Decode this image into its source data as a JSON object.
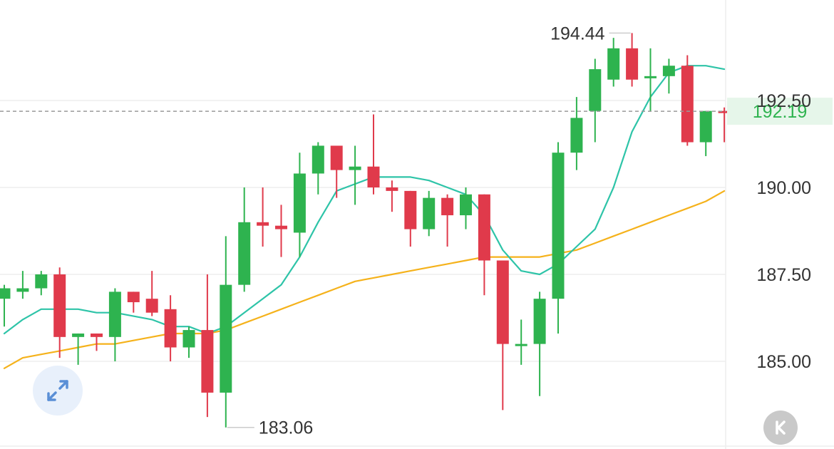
{
  "chart_data": {
    "type": "candlestick",
    "y_ticks": [
      "192.50",
      "190.00",
      "187.50",
      "185.00"
    ],
    "ylim": [
      183.0,
      195.0
    ],
    "high_marker": "194.44",
    "low_marker": "183.06",
    "current_price_label": "192.19",
    "current_price": 192.19,
    "colors": {
      "up": "#2eb34f",
      "down": "#e03a4b",
      "ma_short": "#2ec4a8",
      "ma_long": "#f5b21b",
      "grid": "#eeeeee",
      "price_line": "#9a9a9a",
      "price_label_bg": "#e6f6ea",
      "price_label_text": "#2eb34f",
      "axis_text": "#333333"
    },
    "candles": [
      {
        "o": 186.8,
        "c": 187.1,
        "h": 187.2,
        "l": 186.0
      },
      {
        "o": 187.0,
        "c": 187.1,
        "h": 187.6,
        "l": 186.8
      },
      {
        "o": 187.1,
        "c": 187.5,
        "h": 187.6,
        "l": 186.9
      },
      {
        "o": 187.5,
        "c": 185.7,
        "h": 187.7,
        "l": 185.1
      },
      {
        "o": 185.7,
        "c": 185.8,
        "h": 185.8,
        "l": 184.9
      },
      {
        "o": 185.8,
        "c": 185.7,
        "h": 185.8,
        "l": 185.3
      },
      {
        "o": 185.7,
        "c": 187.0,
        "h": 187.1,
        "l": 185.0
      },
      {
        "o": 187.0,
        "c": 186.7,
        "h": 187.0,
        "l": 186.4
      },
      {
        "o": 186.8,
        "c": 186.4,
        "h": 187.6,
        "l": 186.3
      },
      {
        "o": 186.5,
        "c": 185.4,
        "h": 186.9,
        "l": 185.0
      },
      {
        "o": 185.4,
        "c": 185.9,
        "h": 186.0,
        "l": 185.1
      },
      {
        "o": 185.9,
        "c": 184.1,
        "h": 187.5,
        "l": 183.4
      },
      {
        "o": 184.1,
        "c": 187.2,
        "h": 188.6,
        "l": 183.1
      },
      {
        "o": 187.2,
        "c": 189.0,
        "h": 190.0,
        "l": 187.0
      },
      {
        "o": 189.0,
        "c": 188.9,
        "h": 190.0,
        "l": 188.3
      },
      {
        "o": 188.9,
        "c": 188.8,
        "h": 189.5,
        "l": 188.0
      },
      {
        "o": 188.7,
        "c": 190.4,
        "h": 191.0,
        "l": 188.0
      },
      {
        "o": 190.4,
        "c": 191.2,
        "h": 191.3,
        "l": 189.8
      },
      {
        "o": 191.2,
        "c": 190.5,
        "h": 191.2,
        "l": 189.7
      },
      {
        "o": 190.5,
        "c": 190.6,
        "h": 191.2,
        "l": 189.5
      },
      {
        "o": 190.6,
        "c": 190.0,
        "h": 192.1,
        "l": 189.8
      },
      {
        "o": 190.0,
        "c": 189.9,
        "h": 190.2,
        "l": 189.3
      },
      {
        "o": 189.9,
        "c": 188.8,
        "h": 189.9,
        "l": 188.3
      },
      {
        "o": 188.8,
        "c": 189.7,
        "h": 189.9,
        "l": 188.6
      },
      {
        "o": 189.7,
        "c": 189.2,
        "h": 189.8,
        "l": 188.3
      },
      {
        "o": 189.2,
        "c": 189.8,
        "h": 190.0,
        "l": 188.8
      },
      {
        "o": 189.8,
        "c": 187.9,
        "h": 189.8,
        "l": 186.9
      },
      {
        "o": 187.9,
        "c": 185.5,
        "h": 187.9,
        "l": 183.6
      },
      {
        "o": 185.5,
        "c": 185.5,
        "h": 186.2,
        "l": 184.9
      },
      {
        "o": 185.5,
        "c": 186.8,
        "h": 187.0,
        "l": 184.0
      },
      {
        "o": 186.8,
        "c": 191.0,
        "h": 191.3,
        "l": 185.8
      },
      {
        "o": 191.0,
        "c": 192.0,
        "h": 192.6,
        "l": 190.5
      },
      {
        "o": 192.2,
        "c": 193.4,
        "h": 193.7,
        "l": 191.3
      },
      {
        "o": 193.1,
        "c": 194.0,
        "h": 194.3,
        "l": 192.9
      },
      {
        "o": 194.0,
        "c": 193.1,
        "h": 194.44,
        "l": 192.9
      },
      {
        "o": 193.2,
        "c": 193.2,
        "h": 194.0,
        "l": 192.2
      },
      {
        "o": 193.2,
        "c": 193.5,
        "h": 193.7,
        "l": 192.7
      },
      {
        "o": 193.5,
        "c": 191.3,
        "h": 193.8,
        "l": 191.2
      },
      {
        "o": 191.3,
        "c": 192.2,
        "h": 192.2,
        "l": 190.9
      },
      {
        "o": 192.2,
        "c": 192.19,
        "h": 192.3,
        "l": 191.3
      }
    ],
    "ma_short_values": [
      185.8,
      186.2,
      186.5,
      186.5,
      186.5,
      186.4,
      186.4,
      186.3,
      186.2,
      186.0,
      186.0,
      185.8,
      186.0,
      186.4,
      186.8,
      187.2,
      188.0,
      189.0,
      189.9,
      190.1,
      190.3,
      190.3,
      190.3,
      190.2,
      190.0,
      189.8,
      189.2,
      188.2,
      187.6,
      187.5,
      187.8,
      188.3,
      188.8,
      190.0,
      191.6,
      192.6,
      193.3,
      193.5,
      193.5,
      193.4
    ],
    "ma_long_values": [
      184.8,
      185.1,
      185.2,
      185.3,
      185.4,
      185.5,
      185.5,
      185.6,
      185.7,
      185.8,
      185.8,
      185.8,
      185.9,
      186.1,
      186.3,
      186.5,
      186.7,
      186.9,
      187.1,
      187.3,
      187.4,
      187.5,
      187.6,
      187.7,
      187.8,
      187.9,
      188.0,
      188.0,
      188.0,
      188.0,
      188.1,
      188.2,
      188.4,
      188.6,
      188.8,
      189.0,
      189.2,
      189.4,
      189.6,
      189.9
    ]
  },
  "icons": {
    "expand": "expand-arrows-icon",
    "kline": "k-letter-icon"
  }
}
